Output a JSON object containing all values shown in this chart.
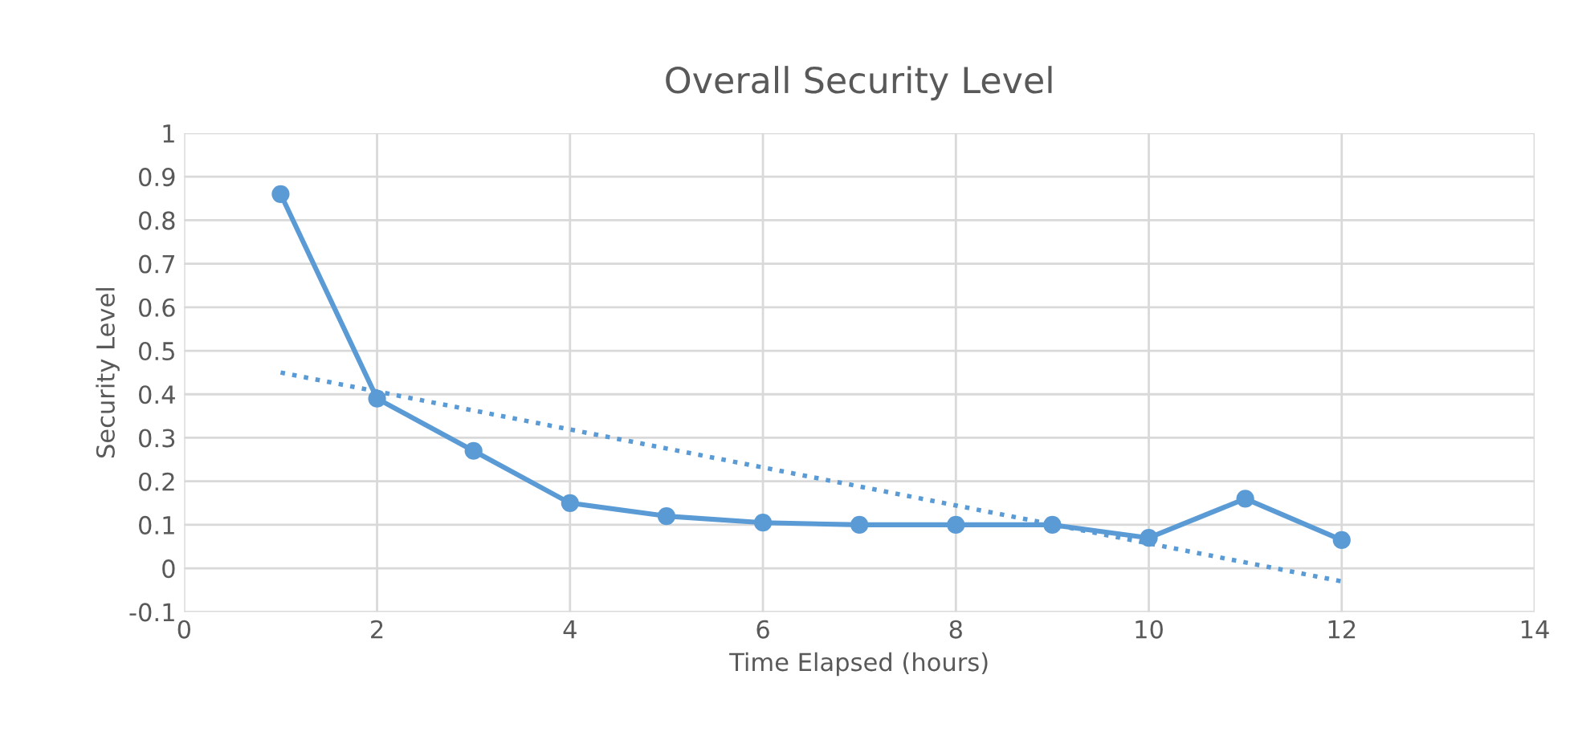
{
  "chart_data": {
    "type": "line",
    "title": "Overall Security Level",
    "xlabel": "Time Elapsed (hours)",
    "ylabel": "Security Level",
    "xlim": [
      0,
      14
    ],
    "xticks": [
      0,
      2,
      4,
      6,
      8,
      10,
      12,
      14
    ],
    "ylim": [
      -0.1,
      1
    ],
    "yticks": [
      -0.1,
      0,
      0.1,
      0.2,
      0.3,
      0.4,
      0.5,
      0.6,
      0.7,
      0.8,
      0.9,
      1
    ],
    "grid": true,
    "series": [
      {
        "color": "#5b9bd5",
        "marker": "circle",
        "line_style": "solid",
        "x": [
          1,
          2,
          3,
          4,
          5,
          6,
          7,
          8,
          9,
          10,
          11,
          12
        ],
        "values": [
          0.86,
          0.39,
          0.27,
          0.15,
          0.12,
          0.105,
          0.1,
          0.1,
          0.1,
          0.07,
          0.16,
          0.065
        ]
      },
      {
        "color": "#5b9bd5",
        "marker": "none",
        "line_style": "dotted",
        "x": [
          1,
          12
        ],
        "values": [
          0.45,
          -0.03
        ]
      }
    ]
  }
}
